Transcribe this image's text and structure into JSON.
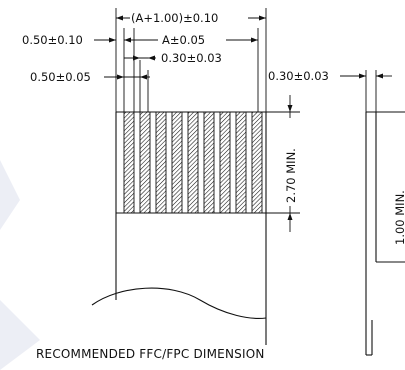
{
  "labels": {
    "pitch_total": "(A+1.00)±0.10",
    "width_a": "A±0.05",
    "edge_left": "0.50±0.10",
    "contact_width": "0.30±0.03",
    "contact_pitch": "0.50±0.05",
    "thickness": "0.30±0.03",
    "length_min": "2.70 MIN.",
    "side_length": "1.00 MIN."
  },
  "caption": "RECOMMENDED FFC/FPC DIMENSION",
  "colors": {
    "line": "#111111",
    "watermark": "#dfe3ef"
  }
}
